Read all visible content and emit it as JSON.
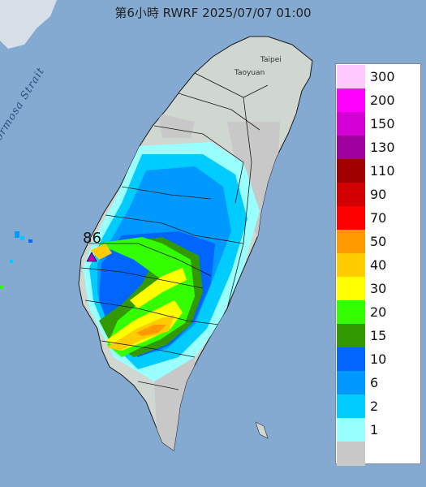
{
  "title": "第6小時  RWRF 2025/07/07 01:00",
  "map_labels": {
    "strait": "Formosa Strait",
    "taipei": "Taipei",
    "taoyuan": "Taoyuan"
  },
  "max_marker": {
    "value": "86",
    "icon": "triangle-marker-icon",
    "color": "#c000c0"
  },
  "legend": {
    "items": [
      {
        "label": "300",
        "color": "#ffc8ff"
      },
      {
        "label": "200",
        "color": "#ff00ff"
      },
      {
        "label": "150",
        "color": "#d400d4"
      },
      {
        "label": "130",
        "color": "#a000a0"
      },
      {
        "label": "110",
        "color": "#a00000"
      },
      {
        "label": "90",
        "color": "#d20000"
      },
      {
        "label": "70",
        "color": "#ff0000"
      },
      {
        "label": "50",
        "color": "#ff9900"
      },
      {
        "label": "40",
        "color": "#ffcc00"
      },
      {
        "label": "30",
        "color": "#ffff00"
      },
      {
        "label": "20",
        "color": "#33ff00"
      },
      {
        "label": "15",
        "color": "#339900"
      },
      {
        "label": "10",
        "color": "#0066ff"
      },
      {
        "label": "6",
        "color": "#0099ff"
      },
      {
        "label": "2",
        "color": "#00ccff"
      },
      {
        "label": "1",
        "color": "#99ffff"
      },
      {
        "label": "",
        "color": "#c8c8c8"
      }
    ]
  },
  "colors": {
    "sea": "#7fa6cf",
    "land": "#d0d6d0",
    "no_rain": "#c8c8c8"
  }
}
